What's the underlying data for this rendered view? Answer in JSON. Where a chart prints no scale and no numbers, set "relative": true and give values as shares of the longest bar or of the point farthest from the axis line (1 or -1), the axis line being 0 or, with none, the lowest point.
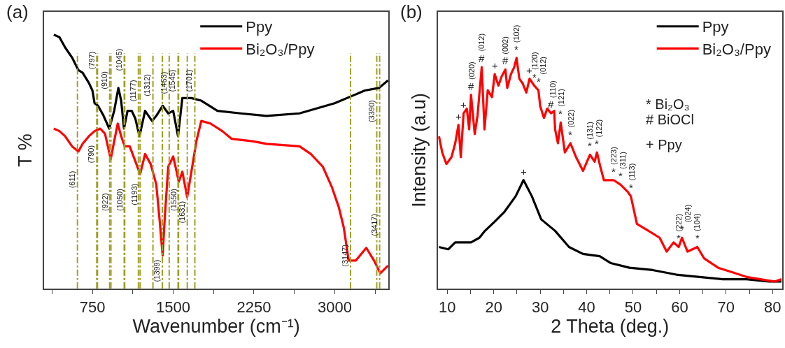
{
  "chart_data": [
    {
      "type": "line",
      "title": "(a)",
      "xlabel": "Wavenumber (cm⁻¹)",
      "ylabel": "T %",
      "relative": true,
      "legend": "top",
      "xlim": [
        300,
        3500
      ],
      "xticks": [
        {
          "value": 375,
          "label": null
        },
        750,
        {
          "value": 1125,
          "label": null
        },
        1500,
        {
          "value": 1875,
          "label": null
        },
        2250,
        {
          "value": 2625,
          "label": null
        },
        3000,
        {
          "value": 3375,
          "label": null
        }
      ],
      "series": [
        {
          "name": "Ppy",
          "color": "#000000",
          "x": [
            391,
            444,
            496,
            561,
            620,
            659,
            717,
            750,
            770,
            802,
            854,
            906,
            952,
            991,
            1017,
            1043,
            1076,
            1115,
            1148,
            1187,
            1239,
            1304,
            1343,
            1402,
            1454,
            1500,
            1545,
            1585,
            1669,
            1761,
            1911,
            2126,
            2367,
            2673,
            2999,
            3280,
            3410,
            3495
          ],
          "values": [
            1.0,
            0.99,
            0.95,
            0.91,
            0.86,
            0.85,
            0.81,
            0.78,
            0.73,
            0.72,
            0.68,
            0.63,
            0.7,
            0.79,
            0.74,
            0.63,
            0.7,
            0.7,
            0.67,
            0.6,
            0.7,
            0.66,
            0.68,
            0.72,
            0.69,
            0.7,
            0.6,
            0.75,
            0.75,
            0.74,
            0.7,
            0.69,
            0.68,
            0.69,
            0.73,
            0.78,
            0.79,
            0.82
          ]
        },
        {
          "name": "Bi₂O₃/Ppy",
          "color": "#ff0000",
          "x": [
            391,
            444,
            496,
            561,
            620,
            659,
            717,
            770,
            822,
            867,
            920,
            952,
            985,
            1017,
            1050,
            1096,
            1141,
            1193,
            1239,
            1291,
            1343,
            1376,
            1402,
            1422,
            1454,
            1500,
            1532,
            1552,
            1585,
            1630,
            1669,
            1715,
            1761,
            1846,
            1956,
            2041,
            2237,
            2367,
            2673,
            2778,
            2889,
            2973,
            3038,
            3084,
            3130,
            3195,
            3293,
            3365,
            3423,
            3495
          ],
          "values": [
            0.63,
            0.62,
            0.6,
            0.56,
            0.54,
            0.57,
            0.6,
            0.62,
            0.63,
            0.61,
            0.51,
            0.58,
            0.65,
            0.6,
            0.56,
            0.56,
            0.51,
            0.45,
            0.53,
            0.49,
            0.41,
            0.26,
            0.13,
            0.28,
            0.48,
            0.52,
            0.46,
            0.42,
            0.46,
            0.36,
            0.46,
            0.58,
            0.66,
            0.65,
            0.62,
            0.59,
            0.58,
            0.57,
            0.56,
            0.53,
            0.48,
            0.4,
            0.32,
            0.24,
            0.11,
            0.11,
            0.16,
            0.11,
            0.06,
            0.09
          ]
        }
      ],
      "ref_lines": [
        {
          "axis": "x",
          "value": 611,
          "color": "#a0a028",
          "line_style": "dashed"
        },
        {
          "axis": "x",
          "value": 790,
          "color": "#a0a028",
          "line_style": "dashed"
        },
        {
          "axis": "x",
          "value": 797,
          "color": "#a0a028",
          "line_style": "dashed"
        },
        {
          "axis": "x",
          "value": 910,
          "color": "#a0a028",
          "line_style": "dashed"
        },
        {
          "axis": "x",
          "value": 922,
          "color": "#a0a028",
          "line_style": "dashed"
        },
        {
          "axis": "x",
          "value": 1045,
          "color": "#a0a028",
          "line_style": "dashed"
        },
        {
          "axis": "x",
          "value": 1050,
          "color": "#a0a028",
          "line_style": "dashed"
        },
        {
          "axis": "x",
          "value": 1177,
          "color": "#a0a028",
          "line_style": "dashed"
        },
        {
          "axis": "x",
          "value": 1193,
          "color": "#a0a028",
          "line_style": "dashed"
        },
        {
          "axis": "x",
          "value": 1312,
          "color": "#a0a028",
          "line_style": "dashed"
        },
        {
          "axis": "x",
          "value": 1399,
          "color": "#a0a028",
          "line_style": "dashed"
        },
        {
          "axis": "x",
          "value": 1463,
          "color": "#a0a028",
          "line_style": "dashed"
        },
        {
          "axis": "x",
          "value": 1545,
          "color": "#a0a028",
          "line_style": "dashed"
        },
        {
          "axis": "x",
          "value": 1550,
          "color": "#a0a028",
          "line_style": "dashed"
        },
        {
          "axis": "x",
          "value": 1631,
          "color": "#a0a028",
          "line_style": "dashed"
        },
        {
          "axis": "x",
          "value": 1701,
          "color": "#a0a028",
          "line_style": "dashed"
        },
        {
          "axis": "x",
          "value": 3147,
          "color": "#a0a028",
          "line_style": "dashed"
        },
        {
          "axis": "x",
          "value": 3390,
          "color": "#a0a028",
          "line_style": "dashed"
        },
        {
          "axis": "x",
          "value": 3417,
          "color": "#a0a028",
          "line_style": "dashed"
        }
      ],
      "annotations": [
        {
          "text": "(797)",
          "x": 797,
          "y": 0.9
        },
        {
          "text": "(910)",
          "x": 910,
          "y": 0.82
        },
        {
          "text": "(1045)",
          "x": 1045,
          "y": 0.9
        },
        {
          "text": "(1177)",
          "x": 1177,
          "y": 0.78
        },
        {
          "text": "(1312)",
          "x": 1312,
          "y": 0.8
        },
        {
          "text": "(1463)",
          "x": 1463,
          "y": 0.81
        },
        {
          "text": "(1545)",
          "x": 1545,
          "y": 0.82
        },
        {
          "text": "(1701)",
          "x": 1701,
          "y": 0.82
        },
        {
          "text": "(3390)",
          "x": 3390,
          "y": 0.7
        },
        {
          "text": "(611)",
          "x": 611,
          "y": 0.43
        },
        {
          "text": "(790)",
          "x": 790,
          "y": 0.53
        },
        {
          "text": "(922)",
          "x": 922,
          "y": 0.34
        },
        {
          "text": "(1050)",
          "x": 1050,
          "y": 0.35
        },
        {
          "text": "(1193)",
          "x": 1193,
          "y": 0.37
        },
        {
          "text": "(1399)",
          "x": 1399,
          "y": 0.07
        },
        {
          "text": "(1550)",
          "x": 1550,
          "y": 0.35
        },
        {
          "text": "(1631)",
          "x": 1631,
          "y": 0.3
        },
        {
          "text": "(3147)",
          "x": 3147,
          "y": 0.13
        },
        {
          "text": "(3417)",
          "x": 3417,
          "y": 0.25
        }
      ]
    },
    {
      "type": "line",
      "title": "(b)",
      "xlabel": "2 Theta (deg.)",
      "ylabel": "Intensity (a.u)",
      "relative": true,
      "legend": "top right",
      "xlim": [
        8,
        82
      ],
      "xticks": [
        10,
        {
          "value": 15,
          "label": null
        },
        20,
        {
          "value": 25,
          "label": null
        },
        30,
        {
          "value": 35,
          "label": null
        },
        40,
        {
          "value": 45,
          "label": null
        },
        50,
        {
          "value": 55,
          "label": null
        },
        60,
        {
          "value": 65,
          "label": null
        },
        70,
        {
          "value": 75,
          "label": null
        },
        80
      ],
      "series": [
        {
          "name": "Ppy",
          "color": "#000000",
          "x": [
            8.2,
            10.2,
            11.7,
            15.1,
            16.9,
            18.1,
            20.2,
            22.2,
            24.7,
            26.4,
            28.2,
            30.2,
            33.2,
            36.2,
            39.2,
            42.8,
            45.2,
            49.2,
            54.2,
            59.3,
            64.3,
            69.3,
            74.4,
            79.3,
            81.9
          ],
          "values": [
            0.18,
            0.17,
            0.2,
            0.2,
            0.22,
            0.25,
            0.29,
            0.33,
            0.4,
            0.47,
            0.4,
            0.3,
            0.25,
            0.18,
            0.15,
            0.14,
            0.11,
            0.09,
            0.08,
            0.06,
            0.05,
            0.04,
            0.04,
            0.03,
            0.03
          ]
        },
        {
          "name": "Bi₂O₃/Ppy",
          "color": "#ff0000",
          "x": [
            8.2,
            8.9,
            9.8,
            10.9,
            11.7,
            12.4,
            12.9,
            13.5,
            14.2,
            14.7,
            15.1,
            15.9,
            16.5,
            17.4,
            18.0,
            18.7,
            19.6,
            20.2,
            21.0,
            21.7,
            22.5,
            22.9,
            23.7,
            24.4,
            24.9,
            25.5,
            26.2,
            27.0,
            27.7,
            28.7,
            29.6,
            30.0,
            30.8,
            31.5,
            32.3,
            33.0,
            33.2,
            33.8,
            34.4,
            35.3,
            36.5,
            37.7,
            39.2,
            40.7,
            41.7,
            42.2,
            42.9,
            43.7,
            45.8,
            47.3,
            48.8,
            49.5,
            50.8,
            53.3,
            55.7,
            57.2,
            58.7,
            59.8,
            60.5,
            61.7,
            63.8,
            65.3,
            68.3,
            71.4,
            74.4,
            77.4,
            80.4,
            81.9
          ],
          "values": [
            0.66,
            0.59,
            0.54,
            0.57,
            0.63,
            0.71,
            0.57,
            0.76,
            0.78,
            0.69,
            0.84,
            0.67,
            0.75,
            0.96,
            0.69,
            0.86,
            0.83,
            0.93,
            0.88,
            0.92,
            0.95,
            0.87,
            0.93,
            0.96,
            1.0,
            0.91,
            0.89,
            0.85,
            0.91,
            0.88,
            0.86,
            0.79,
            0.74,
            0.78,
            0.76,
            0.77,
            0.69,
            0.63,
            0.72,
            0.59,
            0.63,
            0.57,
            0.51,
            0.58,
            0.55,
            0.59,
            0.53,
            0.47,
            0.47,
            0.45,
            0.42,
            0.4,
            0.28,
            0.25,
            0.22,
            0.16,
            0.2,
            0.18,
            0.22,
            0.16,
            0.18,
            0.13,
            0.09,
            0.07,
            0.05,
            0.04,
            0.03,
            0.04
          ]
        }
      ],
      "annotations": [
        {
          "text": "+",
          "x": 12.4,
          "y": 0.71
        },
        {
          "text": "+",
          "x": 13.5,
          "y": 0.76
        },
        {
          "text": "#",
          "x": 15.1,
          "y": 0.84
        },
        {
          "text": "#",
          "x": 17.4,
          "y": 0.96
        },
        {
          "text": "+",
          "x": 20.2,
          "y": 0.93
        },
        {
          "text": "#",
          "x": 22.5,
          "y": 0.95
        },
        {
          "text": "*",
          "x": 24.9,
          "y": 1.0
        },
        {
          "text": "+",
          "x": 27.7,
          "y": 0.91
        },
        {
          "text": "*",
          "x": 28.7,
          "y": 0.88
        },
        {
          "text": "*",
          "x": 29.6,
          "y": 0.86
        },
        {
          "text": "#",
          "x": 32.3,
          "y": 0.76
        },
        {
          "text": "*",
          "x": 34.4,
          "y": 0.72
        },
        {
          "text": "*",
          "x": 36.5,
          "y": 0.63
        },
        {
          "text": "*",
          "x": 40.7,
          "y": 0.58
        },
        {
          "text": "*",
          "x": 42.2,
          "y": 0.59
        },
        {
          "text": "*",
          "x": 45.8,
          "y": 0.47
        },
        {
          "text": "*",
          "x": 47.3,
          "y": 0.45
        },
        {
          "text": "*",
          "x": 49.5,
          "y": 0.4
        },
        {
          "text": "*",
          "x": 59.8,
          "y": 0.18
        },
        {
          "text": "*",
          "x": 60.5,
          "y": 0.22
        },
        {
          "text": "*",
          "x": 63.8,
          "y": 0.18
        },
        {
          "text": "+",
          "x": 26.4,
          "y": 0.47
        },
        {
          "text": "(020)",
          "x": 15.1,
          "y": 0.84
        },
        {
          "text": "(012)",
          "x": 17.4,
          "y": 0.96
        },
        {
          "text": "(002)",
          "x": 22.5,
          "y": 0.95
        },
        {
          "text": "(102)",
          "x": 24.9,
          "y": 1.0
        },
        {
          "text": "(120)",
          "x": 28.7,
          "y": 0.88
        },
        {
          "text": "(012)",
          "x": 29.6,
          "y": 0.86
        },
        {
          "text": "(110)",
          "x": 32.3,
          "y": 0.76
        },
        {
          "text": "(121)",
          "x": 34.4,
          "y": 0.72
        },
        {
          "text": "(022)",
          "x": 36.5,
          "y": 0.63
        },
        {
          "text": "(131)",
          "x": 40.7,
          "y": 0.58
        },
        {
          "text": "(122)",
          "x": 42.2,
          "y": 0.59
        },
        {
          "text": "(223)",
          "x": 45.8,
          "y": 0.47
        },
        {
          "text": "(311)",
          "x": 47.3,
          "y": 0.45
        },
        {
          "text": "(113)",
          "x": 49.5,
          "y": 0.4
        },
        {
          "text": "(222)",
          "x": 59.8,
          "y": 0.18
        },
        {
          "text": "(024)",
          "x": 60.5,
          "y": 0.22
        },
        {
          "text": "(104)",
          "x": 63.8,
          "y": 0.18
        },
        "* Bi₂O₃",
        "# BiOCl",
        "+ Ppy"
      ]
    }
  ]
}
